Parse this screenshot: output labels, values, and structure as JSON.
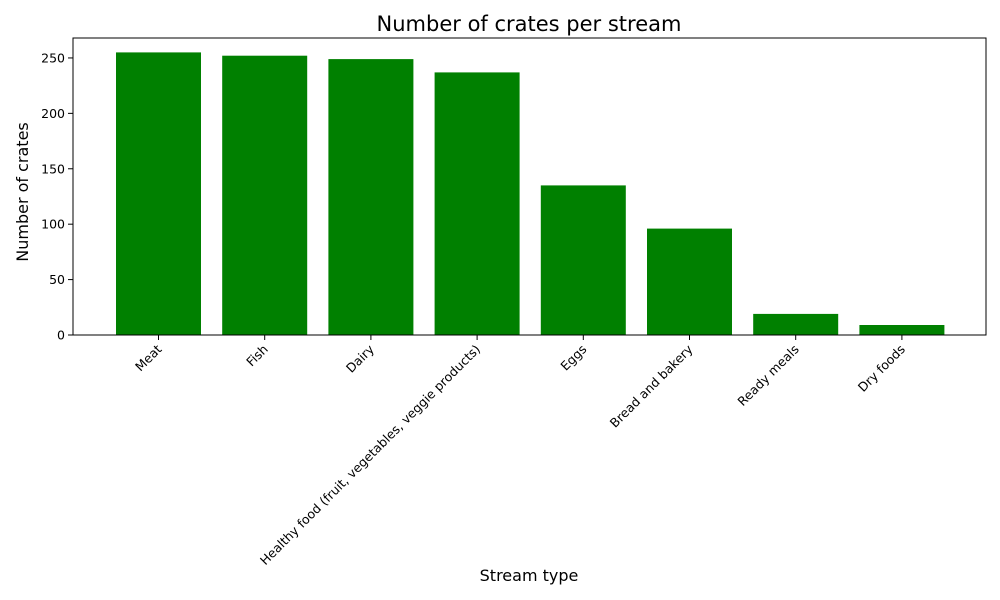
{
  "chart_data": {
    "type": "bar",
    "title": "Number of crates per stream",
    "xlabel": "Stream type",
    "ylabel": "Number of crates",
    "categories": [
      "Meat",
      "Fish",
      "Dairy",
      "Healthy food (fruit, vegetables, veggie products)",
      "Eggs",
      "Bread and bakery",
      "Ready meals",
      "Dry foods"
    ],
    "values": [
      255,
      252,
      249,
      237,
      135,
      96,
      19,
      9
    ],
    "ylim": [
      0,
      268
    ],
    "yticks": [
      0,
      50,
      100,
      150,
      200,
      250
    ],
    "bar_color": "#008000",
    "grid": false,
    "legend": "none"
  }
}
